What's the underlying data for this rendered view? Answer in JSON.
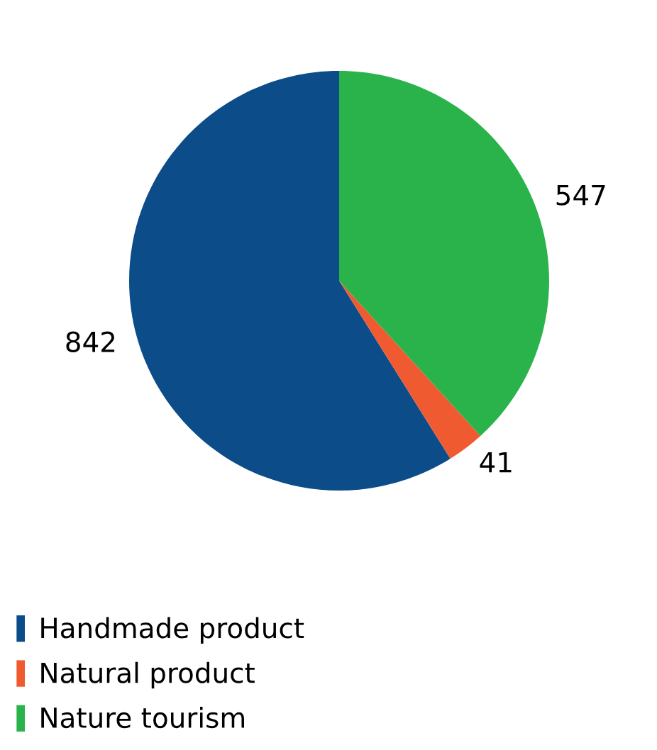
{
  "chart_data": {
    "type": "pie",
    "categories": [
      "Handmade product",
      "Natural product",
      "Nature tourism"
    ],
    "values": [
      842,
      41,
      547
    ],
    "colors": [
      "#0b4c89",
      "#f05a30",
      "#2bb34b"
    ],
    "data_labels": true,
    "legend": "bottom left"
  }
}
